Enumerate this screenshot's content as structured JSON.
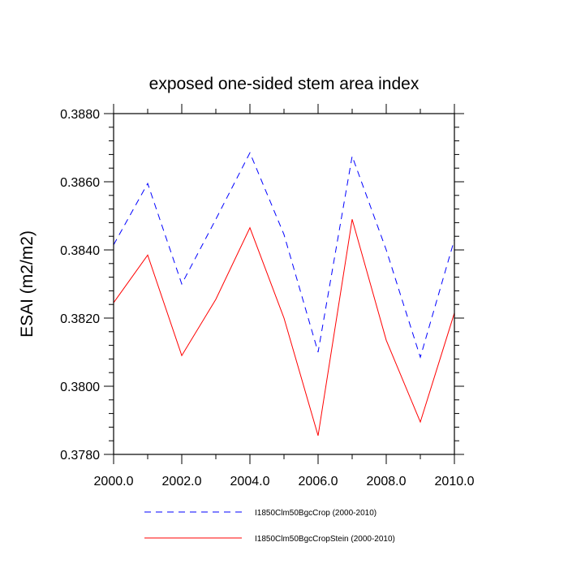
{
  "chart_data": {
    "type": "line",
    "title": "exposed one-sided stem area index",
    "xlabel": "",
    "ylabel": "ESAI  (m2/m2)",
    "xlim": [
      2000,
      2010
    ],
    "ylim": [
      0.378,
      0.388
    ],
    "x_ticks": [
      "2000.0",
      "2002.0",
      "2004.0",
      "2006.0",
      "2008.0",
      "2010.0"
    ],
    "y_ticks": [
      "0.3780",
      "0.3800",
      "0.3820",
      "0.3840",
      "0.3860",
      "0.3880"
    ],
    "x": [
      2000,
      2001,
      2002,
      2003,
      2004,
      2005,
      2006,
      2007,
      2008,
      2009,
      2010
    ],
    "series": [
      {
        "name": "I1850Clm50BgcCrop (2000-2010)",
        "color": "#0000ff",
        "dash": "dashed",
        "values": [
          0.38415,
          0.38595,
          0.383,
          0.3849,
          0.38685,
          0.38445,
          0.381,
          0.38675,
          0.384,
          0.38085,
          0.3843
        ]
      },
      {
        "name": "I1850Clm50BgcCropStein (2000-2010)",
        "color": "#ff0000",
        "dash": "solid",
        "values": [
          0.38245,
          0.38385,
          0.3809,
          0.38255,
          0.38465,
          0.382,
          0.37855,
          0.3849,
          0.38135,
          0.37895,
          0.38215
        ]
      }
    ],
    "legend_position": "bottom",
    "grid": false
  }
}
